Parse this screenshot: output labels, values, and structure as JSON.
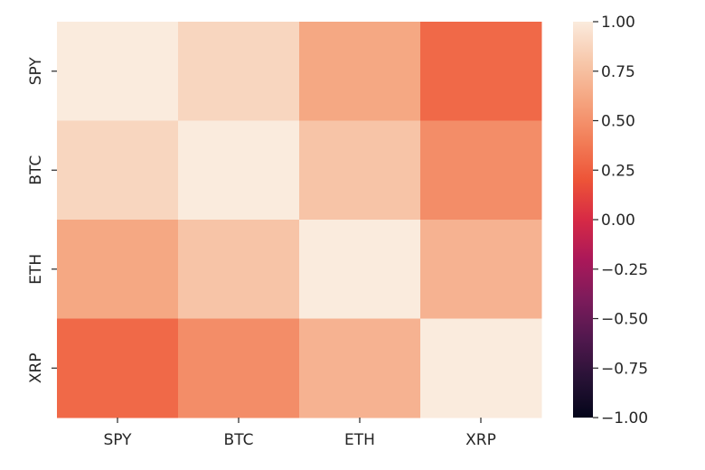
{
  "chart_data": {
    "type": "heatmap",
    "title": "",
    "xlabel": "",
    "ylabel": "",
    "x_categories": [
      "SPY",
      "BTC",
      "ETH",
      "XRP"
    ],
    "y_categories": [
      "SPY",
      "BTC",
      "ETH",
      "XRP"
    ],
    "values": [
      [
        1.0,
        0.88,
        0.62,
        0.3
      ],
      [
        0.88,
        1.0,
        0.78,
        0.48
      ],
      [
        0.62,
        0.78,
        1.0,
        0.68
      ],
      [
        0.3,
        0.48,
        0.68,
        1.0
      ]
    ],
    "vmin": -1.0,
    "vmax": 1.0,
    "colormap": "rocket",
    "colorbar": {
      "ticks": [
        1.0,
        0.75,
        0.5,
        0.25,
        0.0,
        -0.25,
        -0.5,
        -0.75,
        -1.0
      ],
      "tick_labels": [
        "1.00",
        "0.75",
        "0.50",
        "0.25",
        "0.00",
        "−0.25",
        "−0.50",
        "−0.75",
        "−1.00"
      ]
    }
  }
}
